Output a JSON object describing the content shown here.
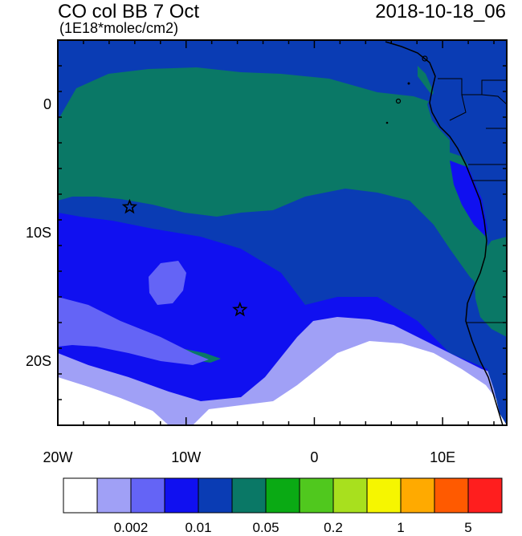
{
  "map": {
    "title": "CO col BB 7 Oct",
    "units": "(1E18*molec/cm2)",
    "timestamp": "2018-10-18_06",
    "lon_ticks": [
      {
        "value": -20,
        "label": "20W"
      },
      {
        "value": -10,
        "label": "10W"
      },
      {
        "value": 0,
        "label": "0"
      },
      {
        "value": 10,
        "label": "10E"
      }
    ],
    "lat_ticks": [
      {
        "value": 0,
        "label": "0"
      },
      {
        "value": -10,
        "label": "10S"
      },
      {
        "value": -20,
        "label": "20S"
      }
    ],
    "lon_range": [
      -20,
      15
    ],
    "lat_range": [
      -25,
      5
    ],
    "markers": [
      {
        "name": "star-marker-1",
        "lon": -14.4,
        "lat": -8.0
      },
      {
        "name": "star-marker-2",
        "lon": -5.8,
        "lat": -16.0
      }
    ],
    "colorbar": {
      "colors": [
        "#ffffff",
        "#a0a0f6",
        "#6464f6",
        "#1010f0",
        "#0a3cb4",
        "#0a7866",
        "#0aaa14",
        "#50c81e",
        "#a8e01e",
        "#f6f600",
        "#ffaa00",
        "#ff5a00",
        "#ff1e1e"
      ],
      "labels": [
        {
          "boundary": 2,
          "text": "0.002"
        },
        {
          "boundary": 4,
          "text": "0.01"
        },
        {
          "boundary": 6,
          "text": "0.05"
        },
        {
          "boundary": 8,
          "text": "0.2"
        },
        {
          "boundary": 10,
          "text": "1"
        },
        {
          "boundary": 12,
          "text": "5"
        }
      ]
    }
  }
}
